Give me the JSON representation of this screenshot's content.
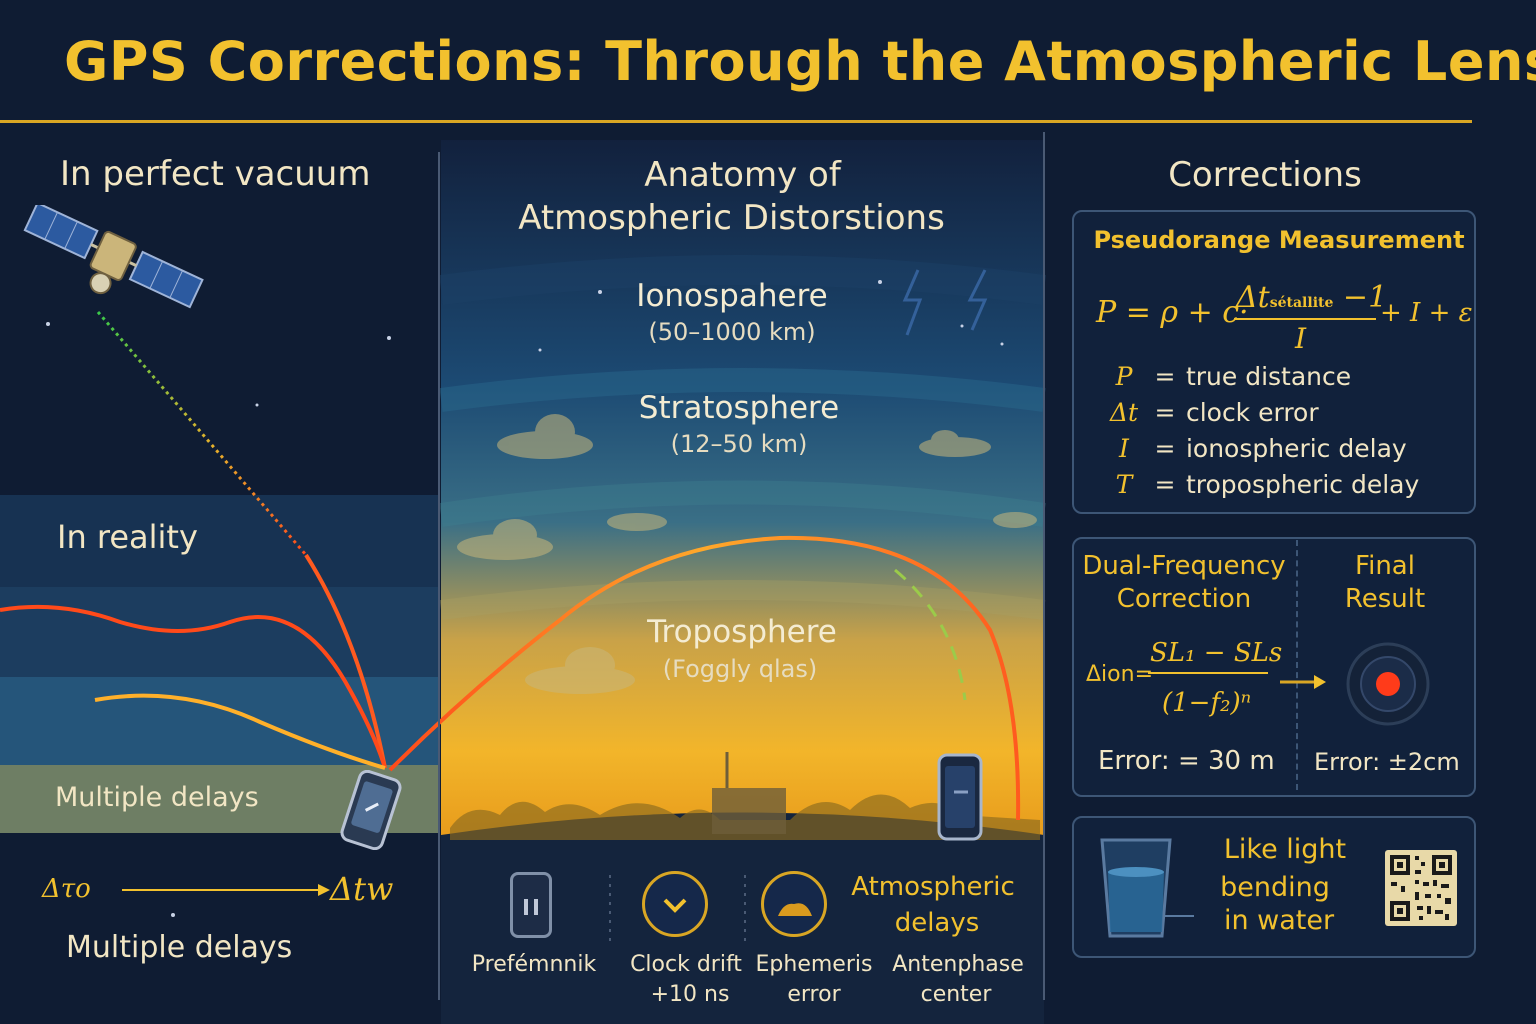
{
  "title": "GPS Corrections: Through the Atmospheric Lens",
  "left_panel": {
    "vacuum_heading": "In perfect vacuum",
    "reality_heading": "In reality",
    "band_label": "Multiple delays",
    "time_start": "Δτο",
    "time_end": "Δtw",
    "footer_label": "Multiple delays"
  },
  "middle_panel": {
    "heading_line1": "Anatomy of",
    "heading_line2": "Atmospheric Distorstions",
    "layers": [
      {
        "name": "Ionospahere",
        "range": "(50–1000 km)"
      },
      {
        "name": "Stratosphere",
        "range": "(12–50 km)"
      },
      {
        "name": "Troposphere",
        "range": "(Foggly qlas)"
      }
    ],
    "sources": [
      {
        "label_line1": "Prefémnnik",
        "label_line2": "",
        "icon": "receiver-icon"
      },
      {
        "label_line1": "Clock drift",
        "label_line2": "+10 ns",
        "icon": "clock-drift-icon"
      },
      {
        "label_line1": "Ephemeris",
        "label_line2": "error",
        "icon": "ephemeris-icon"
      },
      {
        "label_line1": "Antenphase",
        "label_line2": "center",
        "icon": "antenna-icon"
      }
    ],
    "atmo_delays_line1": "Atmospheric",
    "atmo_delays_line2": "delays"
  },
  "right_panel": {
    "heading": "Corrections",
    "pseudorange": {
      "title": "Pseudorange Measurement",
      "formula_left": "P = ρ + c·",
      "formula_num": "Δt",
      "formula_num_sub": "sétallite",
      "formula_num_tail": " −1",
      "formula_den": "I",
      "formula_right": "+ I + ε",
      "legend": [
        {
          "symbol": "P",
          "eq": "=",
          "text": "true distance"
        },
        {
          "symbol": "Δt",
          "eq": "=",
          "text": "clock error"
        },
        {
          "symbol": "I",
          "eq": "=",
          "text": "ionospheric delay"
        },
        {
          "symbol": "T",
          "eq": "=",
          "text": "tropospheric delay"
        }
      ]
    },
    "dual_frequency": {
      "title_line1": "Dual-Frequency",
      "title_line2": "Correction",
      "formula_left": "Δion=",
      "formula_num": "SL₁ − SLs",
      "formula_den": "(1−f₂)ⁿ",
      "error": "Error: = 30 m"
    },
    "final_result": {
      "title_line1": "Final",
      "title_line2": "Result",
      "error": "Error: ±2cm"
    },
    "analogy": {
      "line1": "Like light",
      "line2": "bending",
      "line3": "in water"
    }
  },
  "colors": {
    "background": "#0f1c33",
    "accent": "#f2c12e",
    "signal_hot": "#ff5a1f",
    "signal_green": "#3ec94a",
    "target_dot": "#ff3b1a"
  }
}
